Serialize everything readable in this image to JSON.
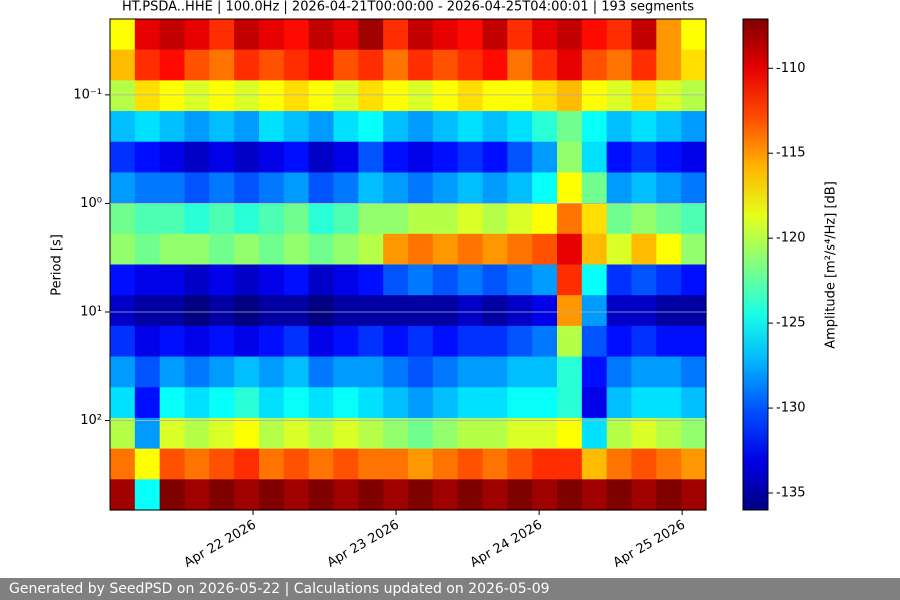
{
  "chart_data": {
    "type": "heatmap",
    "title": "HT.PSDA..HHE | 100.0Hz | 2026-04-21T00:00:00 - 2026-04-25T04:00:01 | 193 segments",
    "ylabel": "Period [s]",
    "colorbar_label": "Amplitude [m²/s⁴/Hz] [dB]",
    "colormap": "jet",
    "xlim": [
      "2026-04-21T00:00:00",
      "2026-04-25T04:00:01"
    ],
    "xticks": [
      {
        "value": "2026-04-22T00:00:00",
        "label": "Apr 22 2026"
      },
      {
        "value": "2026-04-23T00:00:00",
        "label": "Apr 23 2026"
      },
      {
        "value": "2026-04-24T00:00:00",
        "label": "Apr 24 2026"
      },
      {
        "value": "2026-04-25T00:00:00",
        "label": "Apr 25 2026"
      }
    ],
    "ylim": [
      0.02,
      667
    ],
    "log_y": true,
    "y_inverted": true,
    "yticks": [
      {
        "value": 0.1,
        "label": "10⁻¹"
      },
      {
        "value": 1,
        "label": "10⁰"
      },
      {
        "value": 10,
        "label": "10¹"
      },
      {
        "value": 100,
        "label": "10²"
      }
    ],
    "grid": true,
    "zlim": [
      -136,
      -107.1
    ],
    "zticks": [
      -110,
      -115,
      -120,
      -125,
      -130,
      -135
    ],
    "z": [
      [
        -118,
        -110,
        -109,
        -110,
        -112,
        -109,
        -110,
        -111,
        -109,
        -110,
        -108,
        -112,
        -109,
        -110,
        -111,
        -109,
        -112,
        -110,
        -109,
        -111,
        -112,
        -109,
        -115,
        -118
      ],
      [
        -116,
        -112,
        -111,
        -113,
        -114,
        -112,
        -113,
        -112,
        -111,
        -113,
        -112,
        -114,
        -112,
        -113,
        -112,
        -111,
        -114,
        -112,
        -110,
        -113,
        -114,
        -112,
        -115,
        -117
      ],
      [
        -120,
        -117,
        -118,
        -119,
        -118,
        -119,
        -118,
        -117,
        -118,
        -119,
        -117,
        -118,
        -119,
        -118,
        -117,
        -118,
        -118,
        -117,
        -116,
        -118,
        -119,
        -117,
        -119,
        -120
      ],
      [
        -127,
        -126,
        -127,
        -128,
        -127,
        -128,
        -126,
        -127,
        -128,
        -126,
        -125,
        -127,
        -128,
        -127,
        -126,
        -127,
        -126,
        -124,
        -122,
        -125,
        -127,
        -126,
        -127,
        -128
      ],
      [
        -131,
        -132,
        -133,
        -134,
        -133,
        -134,
        -133,
        -132,
        -134,
        -133,
        -130,
        -132,
        -133,
        -132,
        -131,
        -132,
        -130,
        -128,
        -121,
        -126,
        -132,
        -131,
        -132,
        -133
      ],
      [
        -128,
        -129,
        -129,
        -130,
        -129,
        -130,
        -129,
        -128,
        -130,
        -129,
        -127,
        -128,
        -129,
        -128,
        -127,
        -128,
        -127,
        -125,
        -118,
        -122,
        -128,
        -127,
        -128,
        -129
      ],
      [
        -122,
        -123,
        -123,
        -124,
        -123,
        -124,
        -123,
        -122,
        -124,
        -123,
        -121,
        -121,
        -120,
        -120,
        -119,
        -120,
        -119,
        -118,
        -114,
        -117,
        -122,
        -121,
        -122,
        -123
      ],
      [
        -121,
        -122,
        -121,
        -121,
        -122,
        -121,
        -122,
        -121,
        -122,
        -121,
        -120,
        -115,
        -114,
        -115,
        -114,
        -115,
        -114,
        -113,
        -110,
        -116,
        -119,
        -116,
        -118,
        -121
      ],
      [
        -132,
        -133,
        -133,
        -134,
        -133,
        -134,
        -133,
        -132,
        -134,
        -133,
        -132,
        -130,
        -129,
        -130,
        -129,
        -130,
        -129,
        -128,
        -112,
        -125,
        -131,
        -130,
        -131,
        -132
      ],
      [
        -134,
        -135,
        -135,
        -136,
        -135,
        -136,
        -135,
        -135,
        -136,
        -135,
        -135,
        -135,
        -135,
        -135,
        -134,
        -135,
        -134,
        -133,
        -115,
        -128,
        -134,
        -134,
        -135,
        -135
      ],
      [
        -131,
        -133,
        -132,
        -133,
        -132,
        -133,
        -132,
        -131,
        -133,
        -132,
        -131,
        -132,
        -131,
        -132,
        -131,
        -131,
        -130,
        -129,
        -120,
        -130,
        -132,
        -131,
        -132,
        -132
      ],
      [
        -128,
        -130,
        -128,
        -129,
        -128,
        -127,
        -128,
        -127,
        -129,
        -128,
        -128,
        -129,
        -130,
        -129,
        -128,
        -128,
        -127,
        -127,
        -124,
        -132,
        -129,
        -128,
        -128,
        -129
      ],
      [
        -126,
        -132,
        -125,
        -126,
        -125,
        -124,
        -126,
        -125,
        -126,
        -125,
        -126,
        -127,
        -128,
        -127,
        -126,
        -126,
        -125,
        -125,
        -124,
        -133,
        -127,
        -126,
        -126,
        -127
      ],
      [
        -120,
        -128,
        -119,
        -120,
        -119,
        -118,
        -120,
        -119,
        -120,
        -119,
        -120,
        -121,
        -122,
        -121,
        -120,
        -120,
        -119,
        -119,
        -118,
        -126,
        -120,
        -119,
        -120,
        -121
      ],
      [
        -114,
        -118,
        -113,
        -114,
        -113,
        -112,
        -114,
        -113,
        -114,
        -113,
        -114,
        -114,
        -115,
        -114,
        -113,
        -114,
        -113,
        -112,
        -112,
        -116,
        -114,
        -113,
        -114,
        -115
      ],
      [
        -108,
        -125,
        -107,
        -108,
        -107,
        -108,
        -107,
        -108,
        -107,
        -108,
        -107,
        -108,
        -107,
        -108,
        -107,
        -108,
        -107,
        -108,
        -107,
        -108,
        -107,
        -108,
        -107,
        -108
      ]
    ]
  },
  "footer": {
    "text": "Generated by SeedPSD on 2026-05-22 | Calculations updated on 2026-05-09"
  }
}
